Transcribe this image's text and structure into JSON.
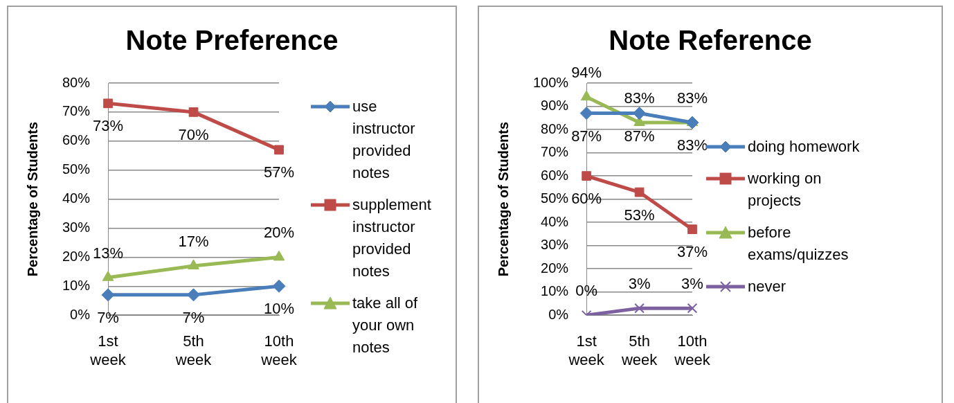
{
  "chart_data": [
    {
      "type": "line",
      "title": "Note Preference",
      "ylabel": "Percentage of Students",
      "categories": [
        "1st week",
        "5th week",
        "10th week"
      ],
      "ylim": [
        0,
        80
      ],
      "yticks": [
        {
          "value": 0,
          "label": "0%"
        },
        {
          "value": 10,
          "label": "10%"
        },
        {
          "value": 20,
          "label": "20%"
        },
        {
          "value": 30,
          "label": "30%"
        },
        {
          "value": 40,
          "label": "40%"
        },
        {
          "value": 50,
          "label": "50%"
        },
        {
          "value": 60,
          "label": "60%"
        },
        {
          "value": 70,
          "label": "70%"
        },
        {
          "value": 80,
          "label": "80%"
        }
      ],
      "grid": "y",
      "legend": "right",
      "series": [
        {
          "name": "use instructor provided notes",
          "color": "#4a7ebb",
          "marker": "diamond",
          "values": [
            7,
            7,
            10
          ],
          "value_labels": [
            "7%",
            "7%",
            "10%"
          ]
        },
        {
          "name": "supplement instructor provided notes",
          "color": "#be4b48",
          "marker": "square",
          "values": [
            73,
            70,
            57
          ],
          "value_labels": [
            "73%",
            "70%",
            "57%"
          ]
        },
        {
          "name": "take all of your own notes",
          "color": "#98b954",
          "marker": "triangle",
          "values": [
            13,
            17,
            20
          ],
          "value_labels": [
            "13%",
            "17%",
            "20%"
          ]
        }
      ]
    },
    {
      "type": "line",
      "title": "Note Reference",
      "ylabel": "Percentage of Students",
      "categories": [
        "1st week",
        "5th week",
        "10th week"
      ],
      "ylim": [
        0,
        100
      ],
      "yticks": [
        {
          "value": 0,
          "label": "0%"
        },
        {
          "value": 10,
          "label": "10%"
        },
        {
          "value": 20,
          "label": "20%"
        },
        {
          "value": 30,
          "label": "30%"
        },
        {
          "value": 40,
          "label": "40%"
        },
        {
          "value": 50,
          "label": "50%"
        },
        {
          "value": 60,
          "label": "60%"
        },
        {
          "value": 70,
          "label": "70%"
        },
        {
          "value": 80,
          "label": "80%"
        },
        {
          "value": 90,
          "label": "90%"
        },
        {
          "value": 100,
          "label": "100%"
        }
      ],
      "grid": "y",
      "legend": "right",
      "series": [
        {
          "name": "doing homework",
          "color": "#4a7ebb",
          "marker": "diamond",
          "values": [
            87,
            87,
            83
          ],
          "value_labels": [
            "87%",
            "87%",
            "83%"
          ]
        },
        {
          "name": "working on projects",
          "color": "#be4b48",
          "marker": "square",
          "values": [
            60,
            53,
            37
          ],
          "value_labels": [
            "60%",
            "53%",
            "37%"
          ]
        },
        {
          "name": "before exams/quizzes",
          "color": "#98b954",
          "marker": "triangle",
          "values": [
            94,
            83,
            83
          ],
          "value_labels": [
            "94%",
            "83%",
            "83%"
          ]
        },
        {
          "name": "never",
          "color": "#7d60a0",
          "marker": "cross",
          "values": [
            0,
            3,
            3
          ],
          "value_labels": [
            "0%",
            "3%",
            "3%"
          ]
        }
      ]
    }
  ]
}
